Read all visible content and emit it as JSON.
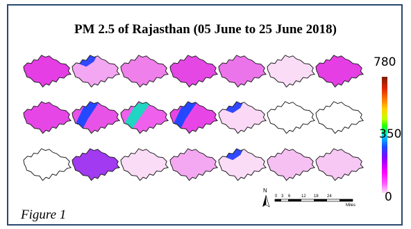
{
  "title": "PM 2.5 of Rajasthan (05 June to 25 June 2018)",
  "caption": "Figure 1",
  "colorbar": {
    "max_label": "780",
    "mid_label": "350",
    "min_label": "0",
    "colors": [
      "#fde0f7",
      "#ff00ff",
      "#8a00ff",
      "#1a4bff",
      "#00c4ff",
      "#29ff00",
      "#ffd400",
      "#ff7f00",
      "#7a1f00"
    ]
  },
  "grid": {
    "rows": 3,
    "cols": 7
  },
  "maps": [
    {
      "base": "#e43ee4",
      "patch": null
    },
    {
      "base": "#f3a6f1",
      "patch": "blue-north"
    },
    {
      "base": "#ef7fea",
      "patch": null
    },
    {
      "base": "#e547e5",
      "patch": null
    },
    {
      "base": "#ec74ea",
      "patch": null
    },
    {
      "base": "#fbdcf7",
      "patch": null
    },
    {
      "base": "#e53ee5",
      "patch": null
    },
    {
      "base": "#e746e7",
      "patch": null
    },
    {
      "base": "#e853e7",
      "patch": "blue-band"
    },
    {
      "base": "#ef60ec",
      "patch": "green-band"
    },
    {
      "base": "#e845e7",
      "patch": "blue-band"
    },
    {
      "base": "#fad8f6",
      "patch": "blue-north"
    },
    {
      "base": "#ffffff",
      "patch": null
    },
    {
      "base": "#ffffff",
      "patch": null
    },
    {
      "base": "#ffffff",
      "patch": null
    },
    {
      "base": "#a13af0",
      "patch": null
    },
    {
      "base": "#fbdcf7",
      "patch": null
    },
    {
      "base": "#f3a8f1",
      "patch": null
    },
    {
      "base": "#fbdcf7",
      "patch": "blue-north"
    },
    {
      "base": "#f6c0f3",
      "patch": null
    },
    {
      "base": "#f7c8f4",
      "patch": null
    }
  ],
  "scale_bar": {
    "ticks": [
      "0",
      "3",
      "6",
      "12",
      "18",
      "24"
    ],
    "unit": "Miles",
    "north": "N"
  }
}
